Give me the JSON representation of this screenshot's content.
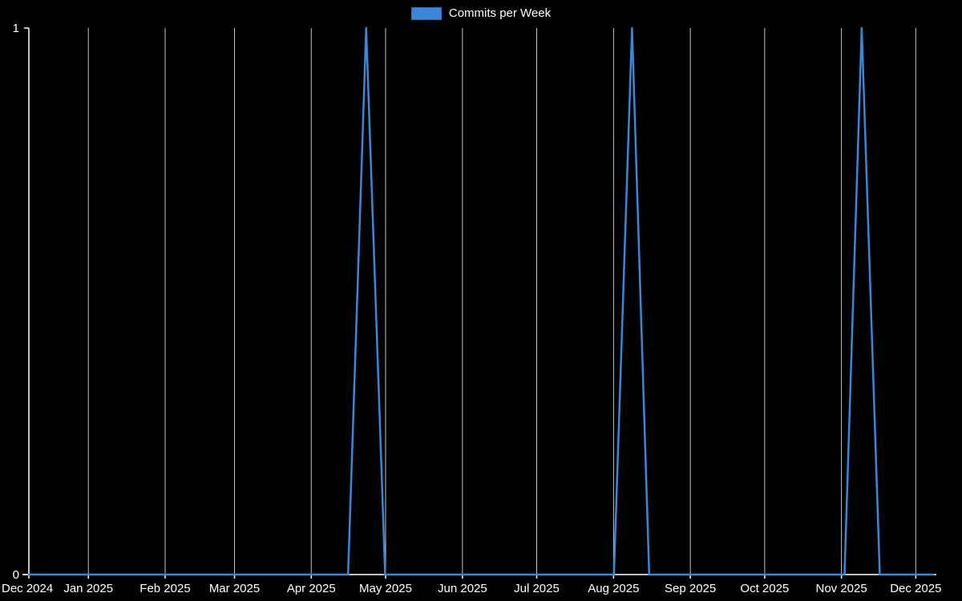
{
  "page": {
    "background": "#000000",
    "text_color": "#ffffff"
  },
  "chart_data": {
    "type": "line",
    "title": "Commits per Week",
    "legend_position": "top-center",
    "grid": "vertical-only",
    "background": "#000000",
    "axis_color": "#ffffff",
    "grid_color": "#c8c8c8",
    "text_color": "#ffffff",
    "ylabel": "",
    "xlabel": "",
    "ylim": [
      0,
      1
    ],
    "y_ticks": [
      {
        "value": 0,
        "label": "0"
      },
      {
        "value": 1,
        "label": "1"
      }
    ],
    "x_ticks": [
      {
        "label": "Dec 2024",
        "pos": 0.0
      },
      {
        "label": "Jan 2025",
        "pos": 0.0658
      },
      {
        "label": "Feb 2025",
        "pos": 0.1507
      },
      {
        "label": "Mar 2025",
        "pos": 0.2274
      },
      {
        "label": "Apr 2025",
        "pos": 0.3123
      },
      {
        "label": "May 2025",
        "pos": 0.3945
      },
      {
        "label": "Jun 2025",
        "pos": 0.4795
      },
      {
        "label": "Jul 2025",
        "pos": 0.5616
      },
      {
        "label": "Aug 2025",
        "pos": 0.6466
      },
      {
        "label": "Sep 2025",
        "pos": 0.7315
      },
      {
        "label": "Oct 2025",
        "pos": 0.8137
      },
      {
        "label": "Nov 2025",
        "pos": 0.8986
      },
      {
        "label": "Dec 2025",
        "pos": 0.9808
      }
    ],
    "series": [
      {
        "name": "Commits per Week",
        "color": "#3a87d9",
        "swatch_border": "#2a6fc0",
        "line_width": 2.5,
        "points": [
          {
            "x": 0.0,
            "y": 0
          },
          {
            "x": 0.353,
            "y": 0
          },
          {
            "x": 0.373,
            "y": 1
          },
          {
            "x": 0.394,
            "y": 0
          },
          {
            "x": 0.647,
            "y": 0
          },
          {
            "x": 0.667,
            "y": 1
          },
          {
            "x": 0.686,
            "y": 0
          },
          {
            "x": 0.902,
            "y": 0
          },
          {
            "x": 0.921,
            "y": 1
          },
          {
            "x": 0.941,
            "y": 0
          },
          {
            "x": 1.0,
            "y": 0
          }
        ]
      }
    ]
  }
}
